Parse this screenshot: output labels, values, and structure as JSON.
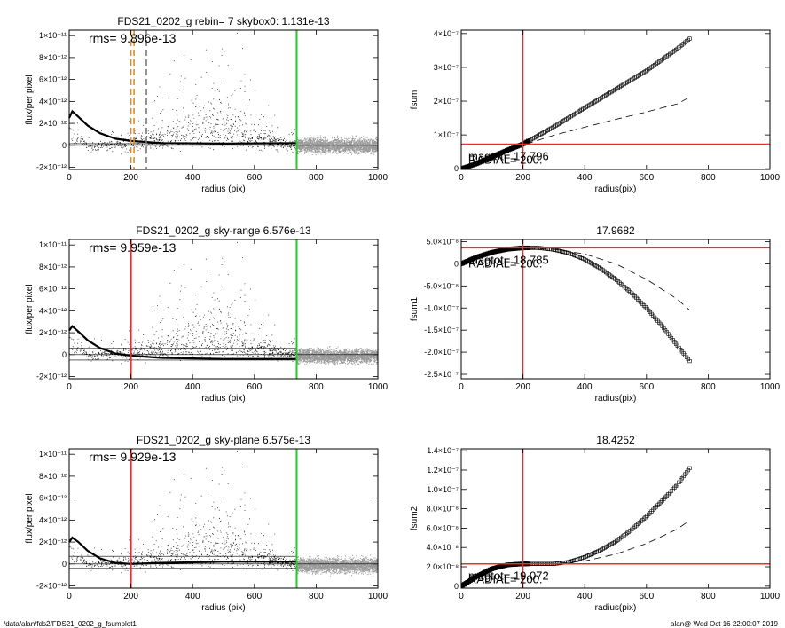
{
  "footer": {
    "left": "/data/alan/fds2/FDS21_0202_g_fsumplot1",
    "right": "alan@  Wed Oct 16 22:00:07 2019"
  },
  "chart_data": [
    {
      "type": "scatter",
      "title": "FDS21_0202_g rebin= 7    skybox0:  1.131e-13",
      "annotation": "rms= 9.896e-13",
      "xlabel": "radius (pix)",
      "ylabel": "flux/per pixel",
      "xlim": [
        0,
        1000
      ],
      "ylim": [
        -2.2e-12,
        1.05e-11
      ],
      "xticks": [
        0,
        200,
        400,
        600,
        800,
        1000
      ],
      "xtick_labels": [
        "0",
        "200",
        "400",
        "600",
        "800",
        "1000"
      ],
      "yticks": [
        -2e-12,
        0,
        2e-12,
        4e-12,
        6e-12,
        8e-12,
        1e-11
      ],
      "ytick_labels": [
        "-2×10⁻¹²",
        "0",
        "2×10⁻¹²",
        "4×10⁻¹²",
        "6×10⁻¹²",
        "8×10⁻¹²",
        "1×10⁻¹¹"
      ],
      "vlines": [
        {
          "x": 200,
          "color": "#d98c2b",
          "style": "dashed"
        },
        {
          "x": 210,
          "color": "#d98c2b",
          "style": "dashed"
        },
        {
          "x": 250,
          "color": "#777777",
          "style": "dashed"
        },
        {
          "x": 737,
          "color": "#22cc22",
          "style": "solid"
        }
      ],
      "profile": [
        {
          "x": 0,
          "y": 2.5e-12
        },
        {
          "x": 10,
          "y": 3.1e-12
        },
        {
          "x": 30,
          "y": 2.6e-12
        },
        {
          "x": 60,
          "y": 1.8e-12
        },
        {
          "x": 100,
          "y": 1.1e-12
        },
        {
          "x": 150,
          "y": 6e-13
        },
        {
          "x": 200,
          "y": 4e-13
        },
        {
          "x": 300,
          "y": 2e-13
        },
        {
          "x": 500,
          "y": 1.5e-13
        },
        {
          "x": 737,
          "y": 2e-13
        }
      ],
      "hlines": [
        1.5e-13
      ],
      "colors": {
        "inner_points": "#000000",
        "outer_points": "#999999",
        "profile": "#000000"
      }
    },
    {
      "type": "scatter",
      "title": "FDS21_0202_g sky-range  6.576e-13",
      "annotation": "rms= 9.959e-13",
      "xlabel": "radius (pix)",
      "ylabel": "flux/per pixel",
      "xlim": [
        0,
        1000
      ],
      "ylim": [
        -2.2e-12,
        1.05e-11
      ],
      "xticks": [
        0,
        200,
        400,
        600,
        800,
        1000
      ],
      "xtick_labels": [
        "0",
        "200",
        "400",
        "600",
        "800",
        "1000"
      ],
      "yticks": [
        -2e-12,
        0,
        2e-12,
        4e-12,
        6e-12,
        8e-12,
        1e-11
      ],
      "ytick_labels": [
        "-2×10⁻¹²",
        "0",
        "2×10⁻¹²",
        "4×10⁻¹²",
        "6×10⁻¹²",
        "8×10⁻¹²",
        "1×10⁻¹¹"
      ],
      "vlines": [
        {
          "x": 200,
          "color": "#e03030",
          "style": "solid"
        },
        {
          "x": 737,
          "color": "#22cc22",
          "style": "solid"
        }
      ],
      "profile": [
        {
          "x": 0,
          "y": 2.2e-12
        },
        {
          "x": 10,
          "y": 2.6e-12
        },
        {
          "x": 30,
          "y": 2.1e-12
        },
        {
          "x": 60,
          "y": 1.3e-12
        },
        {
          "x": 100,
          "y": 6e-13
        },
        {
          "x": 150,
          "y": 1e-13
        },
        {
          "x": 200,
          "y": -1e-13
        },
        {
          "x": 300,
          "y": -3e-13
        },
        {
          "x": 500,
          "y": -4e-13
        },
        {
          "x": 737,
          "y": -4e-13
        }
      ],
      "hlines": [
        6e-13,
        -5e-13
      ],
      "colors": {
        "inner_points": "#000000",
        "outer_points": "#999999",
        "profile": "#000000"
      }
    },
    {
      "type": "scatter",
      "title": "FDS21_0202_g sky-plane  6.575e-13",
      "annotation": "rms= 9.929e-13",
      "xlabel": "radius (pix)",
      "ylabel": "flux/per pixel",
      "xlim": [
        0,
        1000
      ],
      "ylim": [
        -2.2e-12,
        1.05e-11
      ],
      "xticks": [
        0,
        200,
        400,
        600,
        800,
        1000
      ],
      "xtick_labels": [
        "0",
        "200",
        "400",
        "600",
        "800",
        "1000"
      ],
      "yticks": [
        -2e-12,
        0,
        2e-12,
        4e-12,
        6e-12,
        8e-12,
        1e-11
      ],
      "ytick_labels": [
        "-2×10⁻¹²",
        "0",
        "2×10⁻¹²",
        "4×10⁻¹²",
        "6×10⁻¹²",
        "8×10⁻¹²",
        "1×10⁻¹¹"
      ],
      "vlines": [
        {
          "x": 200,
          "color": "#e03030",
          "style": "solid"
        },
        {
          "x": 737,
          "color": "#22cc22",
          "style": "solid"
        }
      ],
      "profile": [
        {
          "x": 0,
          "y": 2e-12
        },
        {
          "x": 10,
          "y": 2.4e-12
        },
        {
          "x": 30,
          "y": 2e-12
        },
        {
          "x": 60,
          "y": 1.2e-12
        },
        {
          "x": 100,
          "y": 5e-13
        },
        {
          "x": 150,
          "y": 1e-13
        },
        {
          "x": 200,
          "y": 0
        },
        {
          "x": 300,
          "y": 1e-13
        },
        {
          "x": 500,
          "y": 2e-13
        },
        {
          "x": 737,
          "y": 2e-13
        }
      ],
      "hlines": [
        7e-13,
        -4e-13
      ],
      "colors": {
        "inner_points": "#000000",
        "outer_points": "#999999",
        "profile": "#000000"
      }
    },
    {
      "type": "line",
      "title": "",
      "xlabel": "radius(pix)",
      "ylabel": "fsum",
      "xlim": [
        0,
        1000
      ],
      "ylim": [
        -2e-09,
        4.1e-07
      ],
      "xticks": [
        0,
        200,
        400,
        600,
        800,
        1000
      ],
      "xtick_labels": [
        "0",
        "200",
        "400",
        "600",
        "800",
        "1000"
      ],
      "yticks": [
        0,
        1e-07,
        2e-07,
        3e-07,
        4e-07
      ],
      "ytick_labels": [
        "0",
        "1×10⁻⁷",
        "2×10⁻⁷",
        "3×10⁻⁷",
        "4×10⁻⁷"
      ],
      "overlay_text": [
        "magtot= 17.796",
        "RADIAL= 200."
      ],
      "vline": 200,
      "hline": 7.3e-08,
      "series": [
        {
          "style": "squares",
          "x": [
            0,
            50,
            100,
            150,
            200,
            300,
            400,
            500,
            600,
            700,
            740
          ],
          "y": [
            0,
            1.5e-08,
            3.5e-08,
            5.5e-08,
            7.3e-08,
            1.24e-07,
            1.8e-07,
            2.35e-07,
            2.9e-07,
            3.55e-07,
            3.85e-07
          ]
        },
        {
          "style": "dashed",
          "x": [
            0,
            100,
            200,
            300,
            400,
            500,
            600,
            700,
            740
          ],
          "y": [
            0,
            3.5e-08,
            7e-08,
            9.9e-08,
            1.23e-07,
            1.46e-07,
            1.68e-07,
            1.92e-07,
            2.12e-07
          ]
        }
      ]
    },
    {
      "type": "line",
      "title": "17.9682",
      "xlabel": "radius(pix)",
      "ylabel": "fsum1",
      "xlim": [
        0,
        1000
      ],
      "ylim": [
        -2.6e-07,
        5.5e-08
      ],
      "xticks": [
        0,
        200,
        400,
        600,
        800,
        1000
      ],
      "xtick_labels": [
        "0",
        "200",
        "400",
        "600",
        "800",
        "1000"
      ],
      "yticks": [
        5e-08,
        0,
        -5e-08,
        -1e-07,
        -1.5e-07,
        -2e-07,
        -2.5e-07
      ],
      "ytick_labels": [
        "5.0×10⁻⁸",
        "0",
        "-5.0×10⁻⁸",
        "-1.0×10⁻⁷",
        "-1.5×10⁻⁷",
        "-2.0×10⁻⁷",
        "-2.5×10⁻⁷"
      ],
      "overlay_text": [
        "magtot= 18.785",
        "RADIAL= 200."
      ],
      "vline": 200,
      "hline": 3.6e-08,
      "series": [
        {
          "style": "squares",
          "x": [
            0,
            50,
            100,
            150,
            200,
            250,
            300,
            350,
            400,
            450,
            500,
            550,
            600,
            650,
            700,
            740
          ],
          "y": [
            0,
            1.5e-08,
            2.6e-08,
            3.3e-08,
            3.6e-08,
            3.6e-08,
            3.2e-08,
            2.4e-08,
            1e-08,
            -1e-08,
            -3.5e-08,
            -6.5e-08,
            -1e-07,
            -1.4e-07,
            -1.85e-07,
            -2.2e-07
          ]
        },
        {
          "style": "dashed",
          "x": [
            0,
            100,
            200,
            300,
            400,
            500,
            600,
            700,
            740
          ],
          "y": [
            0,
            2.5e-08,
            3.5e-08,
            3.3e-08,
            2.2e-08,
            0,
            -3.5e-08,
            -8e-08,
            -1.05e-07
          ]
        }
      ]
    },
    {
      "type": "line",
      "title": "18.4252",
      "xlabel": "radius(pix)",
      "ylabel": "fsum2",
      "xlim": [
        0,
        1000
      ],
      "ylim": [
        -2e-09,
        1.42e-07
      ],
      "xticks": [
        0,
        200,
        400,
        600,
        800,
        1000
      ],
      "xtick_labels": [
        "0",
        "200",
        "400",
        "600",
        "800",
        "1000"
      ],
      "yticks": [
        0,
        2e-08,
        4e-08,
        6e-08,
        8e-08,
        1e-07,
        1.2e-07,
        1.4e-07
      ],
      "ytick_labels": [
        "0",
        "2.0×10⁻⁸",
        "4.0×10⁻⁸",
        "6.0×10⁻⁸",
        "8.0×10⁻⁸",
        "1.0×10⁻⁷",
        "1.2×10⁻⁷",
        "1.4×10⁻⁷"
      ],
      "overlay_text": [
        "magtot= 19.072",
        "RADIAL= 200."
      ],
      "vline": 200,
      "hline": 2.3e-08,
      "series": [
        {
          "style": "squares",
          "x": [
            0,
            50,
            100,
            150,
            200,
            250,
            300,
            350,
            400,
            450,
            500,
            550,
            600,
            650,
            700,
            740
          ],
          "y": [
            0,
            1e-08,
            1.8e-08,
            2.2e-08,
            2.3e-08,
            2.3e-08,
            2.3e-08,
            2.5e-08,
            3e-08,
            3.7e-08,
            4.6e-08,
            5.8e-08,
            7.2e-08,
            8.8e-08,
            1.05e-07,
            1.22e-07
          ]
        },
        {
          "style": "dashed",
          "x": [
            0,
            100,
            200,
            300,
            400,
            500,
            600,
            700,
            740
          ],
          "y": [
            0,
            1.8e-08,
            2.3e-08,
            2.3e-08,
            2.6e-08,
            3.3e-08,
            4.4e-08,
            5.9e-08,
            6.8e-08
          ]
        }
      ]
    }
  ]
}
